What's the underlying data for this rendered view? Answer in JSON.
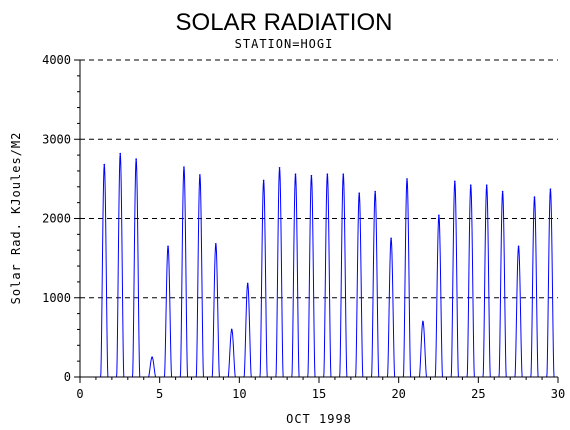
{
  "chart_data": {
    "type": "line",
    "title": "SOLAR RADIATION",
    "subtitle": "STATION=HOGI",
    "xlabel": "OCT 1998",
    "ylabel": "Solar Rad. KJoules/M2",
    "xlim": [
      0,
      30
    ],
    "ylim": [
      0,
      4000
    ],
    "x_ticks": [
      0,
      5,
      10,
      15,
      20,
      25,
      30
    ],
    "y_ticks": [
      0,
      1000,
      2000,
      3000,
      4000
    ],
    "grid": "horizontal dashed",
    "colors": {
      "line": "#0000ff",
      "axis": "#000000",
      "grid": "#000000"
    },
    "series": [
      {
        "daily_peaks": [
          {
            "day": 1,
            "peak": 2680
          },
          {
            "day": 2,
            "peak": 2820
          },
          {
            "day": 3,
            "peak": 2750
          },
          {
            "day": 4,
            "peak": 250
          },
          {
            "day": 5,
            "peak": 1650
          },
          {
            "day": 6,
            "peak": 2650
          },
          {
            "day": 7,
            "peak": 2550
          },
          {
            "day": 8,
            "peak": 1680
          },
          {
            "day": 9,
            "peak": 600
          },
          {
            "day": 10,
            "peak": 1180
          },
          {
            "day": 11,
            "peak": 2480
          },
          {
            "day": 12,
            "peak": 2640
          },
          {
            "day": 13,
            "peak": 2560
          },
          {
            "day": 14,
            "peak": 2540
          },
          {
            "day": 15,
            "peak": 2560
          },
          {
            "day": 16,
            "peak": 2560
          },
          {
            "day": 17,
            "peak": 2320
          },
          {
            "day": 18,
            "peak": 2340
          },
          {
            "day": 19,
            "peak": 1750
          },
          {
            "day": 20,
            "peak": 2500
          },
          {
            "day": 21,
            "peak": 700
          },
          {
            "day": 22,
            "peak": 2040
          },
          {
            "day": 23,
            "peak": 2470
          },
          {
            "day": 24,
            "peak": 2420
          },
          {
            "day": 25,
            "peak": 2420
          },
          {
            "day": 26,
            "peak": 2340
          },
          {
            "day": 27,
            "peak": 1650
          },
          {
            "day": 28,
            "peak": 2270
          },
          {
            "day": 29,
            "peak": 2370
          }
        ]
      }
    ]
  }
}
